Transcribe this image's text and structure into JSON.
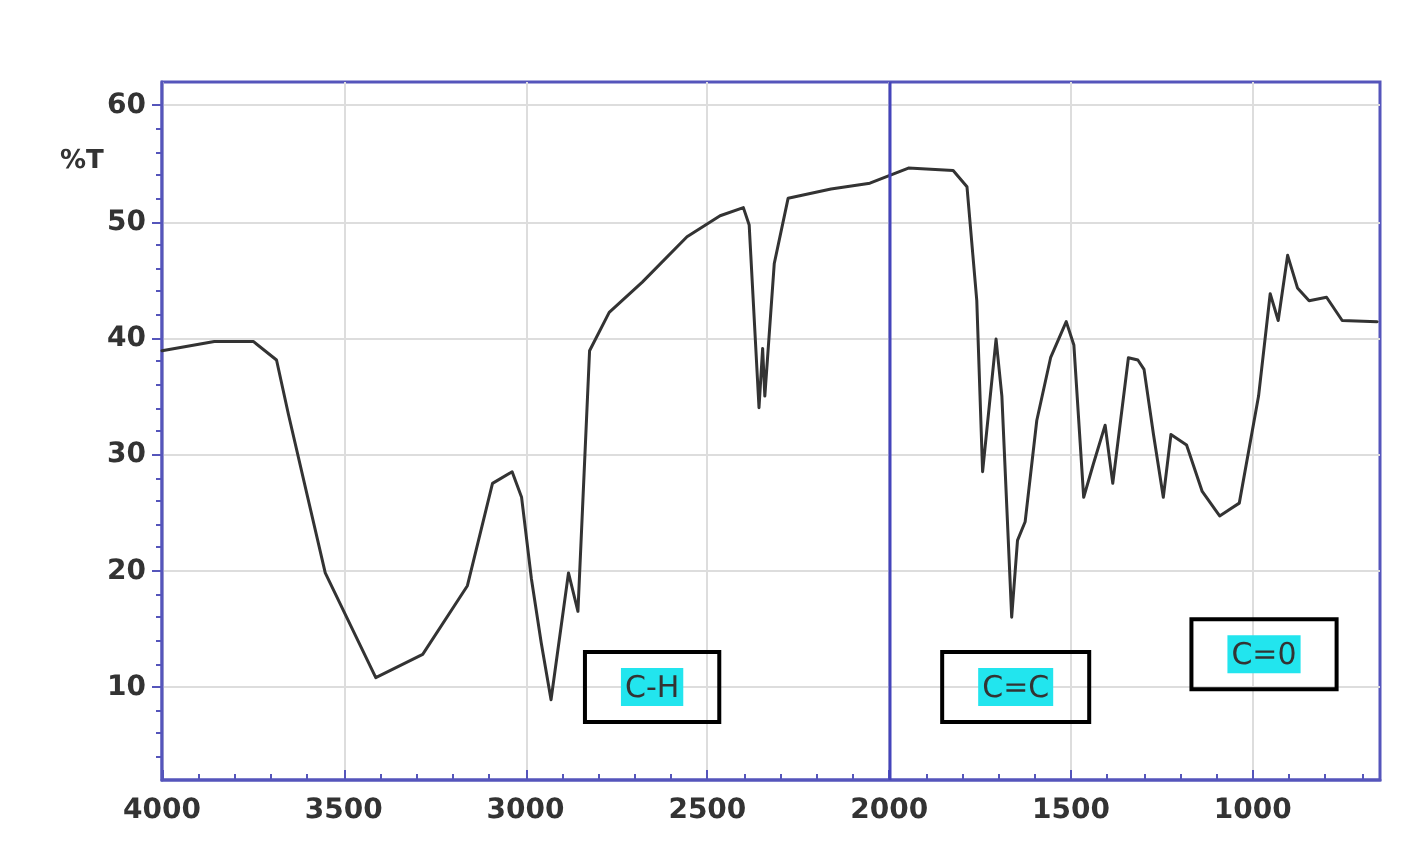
{
  "chart_data": {
    "type": "line",
    "ylabel": "%T",
    "x": [
      4000,
      3856,
      3749,
      3685,
      3652,
      3551,
      3412,
      3283,
      3160,
      3091,
      3037,
      3011,
      2984,
      2957,
      2930,
      2882,
      2856,
      2824,
      2770,
      2679,
      2556,
      2465,
      2401,
      2385,
      2358,
      2348,
      2342,
      2316,
      2278,
      2160,
      2053,
      1947,
      1824,
      1786,
      1759,
      1743,
      1706,
      1690,
      1663,
      1647,
      1626,
      1594,
      1556,
      1513,
      1492,
      1465,
      1439,
      1406,
      1385,
      1342,
      1316,
      1299,
      1273,
      1246,
      1225,
      1182,
      1139,
      1091,
      1037,
      984,
      952,
      930,
      904,
      877,
      845,
      797,
      754,
      658
    ],
    "series": [
      {
        "color": "#333333",
        "values": [
          38.9,
          39.7,
          39.7,
          38.1,
          33.4,
          19.8,
          10.8,
          12.8,
          18.7,
          27.5,
          28.5,
          26.3,
          19.3,
          13.8,
          8.9,
          19.8,
          16.5,
          38.9,
          42.2,
          44.8,
          48.7,
          50.5,
          51.2,
          49.7,
          34.0,
          39.1,
          35.0,
          46.4,
          52.0,
          52.8,
          53.3,
          54.6,
          54.4,
          53.0,
          43.2,
          28.5,
          39.9,
          35.0,
          16.0,
          22.6,
          24.2,
          32.9,
          38.3,
          41.4,
          39.4,
          26.3,
          29.1,
          32.5,
          27.5,
          38.3,
          38.1,
          37.3,
          31.7,
          26.3,
          31.7,
          30.8,
          26.8,
          24.7,
          25.8,
          35.0,
          43.8,
          41.5,
          47.1,
          44.3,
          43.2,
          43.5,
          41.5,
          41.4
        ]
      }
    ],
    "xlim": [
      4000,
      650
    ],
    "xticks": [
      4000,
      3500,
      3000,
      2500,
      2000,
      1500,
      1000
    ],
    "ylim": [
      2,
      62
    ],
    "yticks": [
      10,
      20,
      30,
      40,
      50,
      60
    ],
    "grid": true,
    "marker": "none",
    "line_style": "solid",
    "ref_lines": [
      {
        "axis": "x",
        "value": 2000,
        "color": "#4444bb"
      }
    ],
    "annotations": [
      {
        "text": "C-H",
        "x": 2652,
        "y": 10
      },
      {
        "text": "C=C",
        "x": 1652,
        "y": 10
      },
      {
        "text": "C=0",
        "x": 969,
        "y": 12.8
      }
    ]
  }
}
